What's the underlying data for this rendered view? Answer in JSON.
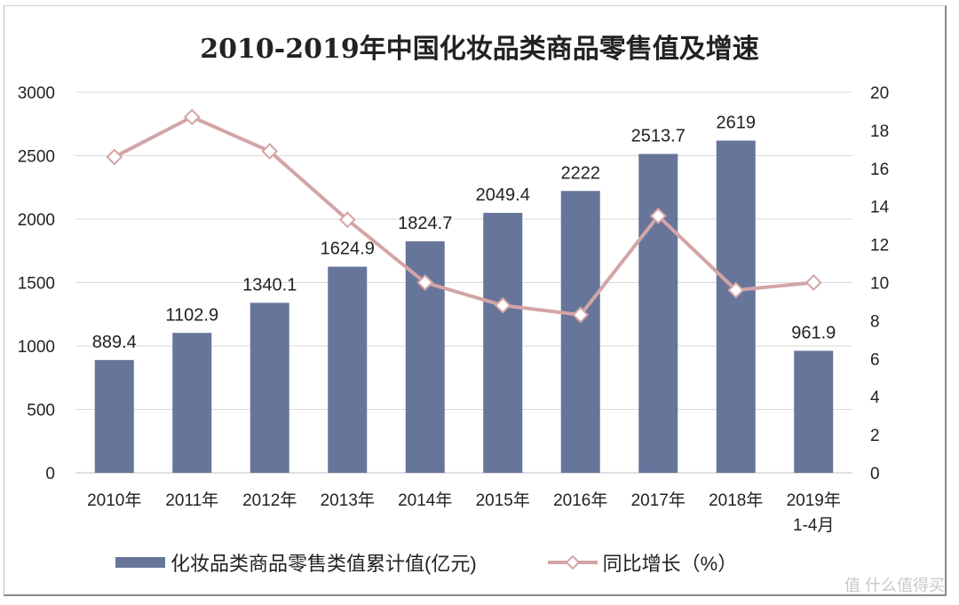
{
  "chart_data": {
    "type": "bar+line",
    "title": "2010-2019年中国化妆品类商品零售值及增速",
    "categories": [
      "2010年",
      "2011年",
      "2012年",
      "2013年",
      "2014年",
      "2015年",
      "2016年",
      "2017年",
      "2018年",
      "2019年\n1-4月"
    ],
    "series": [
      {
        "name": "化妆品类商品零售类值累计值(亿元)",
        "type": "bar",
        "axis": "left",
        "color": "#67759b",
        "values": [
          889.4,
          1102.9,
          1340.1,
          1624.9,
          1824.7,
          2049.4,
          2222,
          2513.7,
          2619,
          961.9
        ],
        "labels": [
          "889.4",
          "1102.9",
          "1340.1",
          "1624.9",
          "1824.7",
          "2049.4",
          "2222",
          "2513.7",
          "2619",
          "961.9"
        ]
      },
      {
        "name": "同比增长（%）",
        "type": "line",
        "axis": "right",
        "color": "#d4a5a5",
        "values": [
          16.6,
          18.7,
          16.9,
          13.3,
          10.0,
          8.8,
          8.3,
          13.5,
          9.6,
          10.0
        ]
      }
    ],
    "ylim_left": [
      0,
      3000
    ],
    "yticks_left": [
      "0",
      "500",
      "1000",
      "1500",
      "2000",
      "2500",
      "3000"
    ],
    "ylim_right": [
      0,
      20
    ],
    "yticks_right": [
      "0",
      "2",
      "4",
      "6",
      "8",
      "10",
      "12",
      "14",
      "16",
      "18",
      "20"
    ],
    "grid": true,
    "legend_position": "bottom"
  },
  "watermark": "值 什么值得买"
}
